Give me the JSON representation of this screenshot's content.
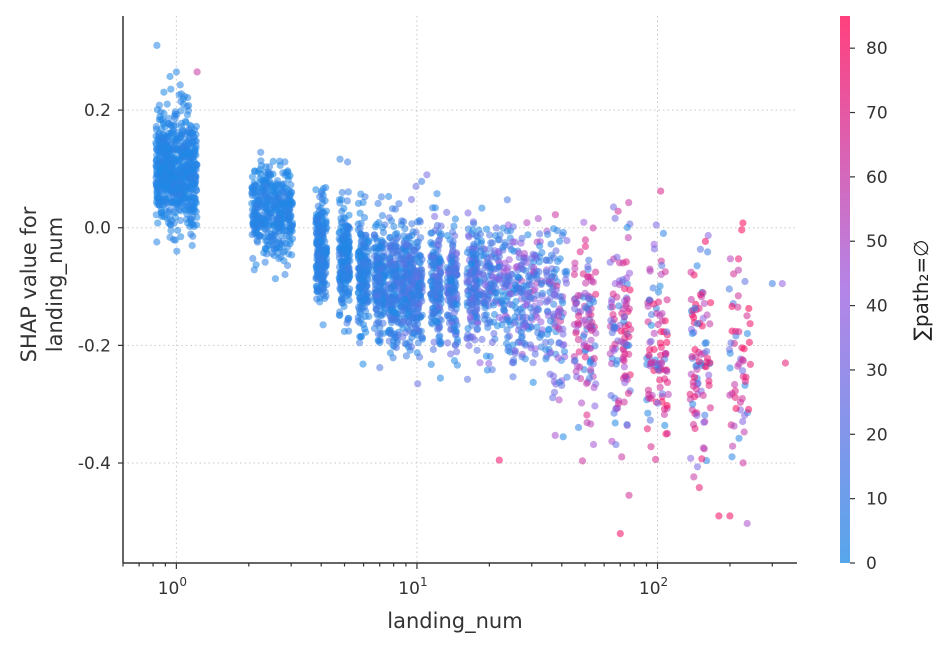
{
  "chart_data": {
    "type": "scatter",
    "xlabel": "landing_num",
    "ylabel_lines": [
      "SHAP value for",
      "landing_num"
    ],
    "x_scale": "log",
    "xlim": [
      0.6,
      380
    ],
    "ylim": [
      -0.57,
      0.36
    ],
    "x_ticks": [
      {
        "value": 1,
        "base": "10",
        "exp": "0"
      },
      {
        "value": 10,
        "base": "10",
        "exp": "1"
      },
      {
        "value": 100,
        "base": "10",
        "exp": "2"
      }
    ],
    "y_ticks": [
      {
        "value": 0.2,
        "label": "0.2"
      },
      {
        "value": 0.0,
        "label": "0.0"
      },
      {
        "value": -0.2,
        "label": "-0.2"
      },
      {
        "value": -0.4,
        "label": "-0.4"
      }
    ],
    "grid": true,
    "colorbar": {
      "feature_label": "∑path₂=∅",
      "range": [
        0,
        85
      ],
      "ticks": [
        0,
        10,
        20,
        30,
        40,
        50,
        60,
        70,
        80
      ],
      "color_low": "#1e88e5",
      "color_high": "#ff0052"
    },
    "point_alpha": 0.55,
    "groups": [
      {
        "x": 1,
        "y_mean": 0.1,
        "y_sd": 0.045,
        "c_max": 6,
        "n": 700
      },
      {
        "x": 2.5,
        "y_mean": 0.03,
        "y_sd": 0.04,
        "c_max": 8,
        "n": 400
      },
      {
        "x": 4,
        "y_mean": -0.04,
        "y_sd": 0.045,
        "c_max": 10,
        "n": 220
      },
      {
        "x": 5,
        "y_mean": -0.06,
        "y_sd": 0.045,
        "c_max": 12,
        "n": 200
      },
      {
        "x": 6,
        "y_mean": -0.08,
        "y_sd": 0.05,
        "c_max": 14,
        "n": 180
      },
      {
        "x": 7,
        "y_mean": -0.09,
        "y_sd": 0.05,
        "c_max": 18,
        "n": 170
      },
      {
        "x": 8,
        "y_mean": -0.1,
        "y_sd": 0.055,
        "c_max": 22,
        "n": 160
      },
      {
        "x": 9,
        "y_mean": -0.1,
        "y_sd": 0.055,
        "c_max": 25,
        "n": 150
      },
      {
        "x": 10,
        "y_mean": -0.1,
        "y_sd": 0.055,
        "c_max": 28,
        "n": 150
      },
      {
        "x": 12,
        "y_mean": -0.1,
        "y_sd": 0.055,
        "c_max": 32,
        "n": 150
      },
      {
        "x": 14,
        "y_mean": -0.1,
        "y_sd": 0.055,
        "c_max": 35,
        "n": 140
      },
      {
        "x": 17,
        "y_mean": -0.1,
        "y_sd": 0.055,
        "c_max": 40,
        "n": 140
      },
      {
        "x": 20,
        "y_mean": -0.1,
        "y_sd": 0.055,
        "c_max": 45,
        "n": 130
      },
      {
        "x": 25,
        "y_mean": -0.11,
        "y_sd": 0.055,
        "c_max": 50,
        "n": 120
      },
      {
        "x": 30,
        "y_mean": -0.12,
        "y_sd": 0.06,
        "c_max": 55,
        "n": 110
      },
      {
        "x": 38,
        "y_mean": -0.14,
        "y_sd": 0.07,
        "c_max": 65,
        "n": 110
      },
      {
        "x": 50,
        "y_mean": -0.16,
        "y_sd": 0.075,
        "c_max": 75,
        "n": 110
      },
      {
        "x": 70,
        "y_mean": -0.18,
        "y_sd": 0.085,
        "c_max": 80,
        "n": 110
      },
      {
        "x": 100,
        "y_mean": -0.2,
        "y_sd": 0.09,
        "c_max": 85,
        "n": 100
      },
      {
        "x": 150,
        "y_mean": -0.22,
        "y_sd": 0.09,
        "c_max": 85,
        "n": 90
      },
      {
        "x": 220,
        "y_mean": -0.24,
        "y_sd": 0.09,
        "c_max": 85,
        "n": 60
      }
    ],
    "outliers": [
      {
        "x": 0.83,
        "y": 0.31,
        "c": 2
      },
      {
        "x": 1.0,
        "y": 0.265,
        "c": 3
      },
      {
        "x": 1.22,
        "y": 0.265,
        "c": 60
      },
      {
        "x": 22,
        "y": -0.395,
        "c": 80
      },
      {
        "x": 70,
        "y": -0.52,
        "c": 80
      },
      {
        "x": 180,
        "y": -0.49,
        "c": 80
      },
      {
        "x": 200,
        "y": -0.49,
        "c": 80
      },
      {
        "x": 330,
        "y": -0.095,
        "c": 40
      },
      {
        "x": 300,
        "y": -0.095,
        "c": 10
      },
      {
        "x": 340,
        "y": -0.23,
        "c": 75
      },
      {
        "x": 11,
        "y": 0.09,
        "c": 30
      }
    ]
  }
}
